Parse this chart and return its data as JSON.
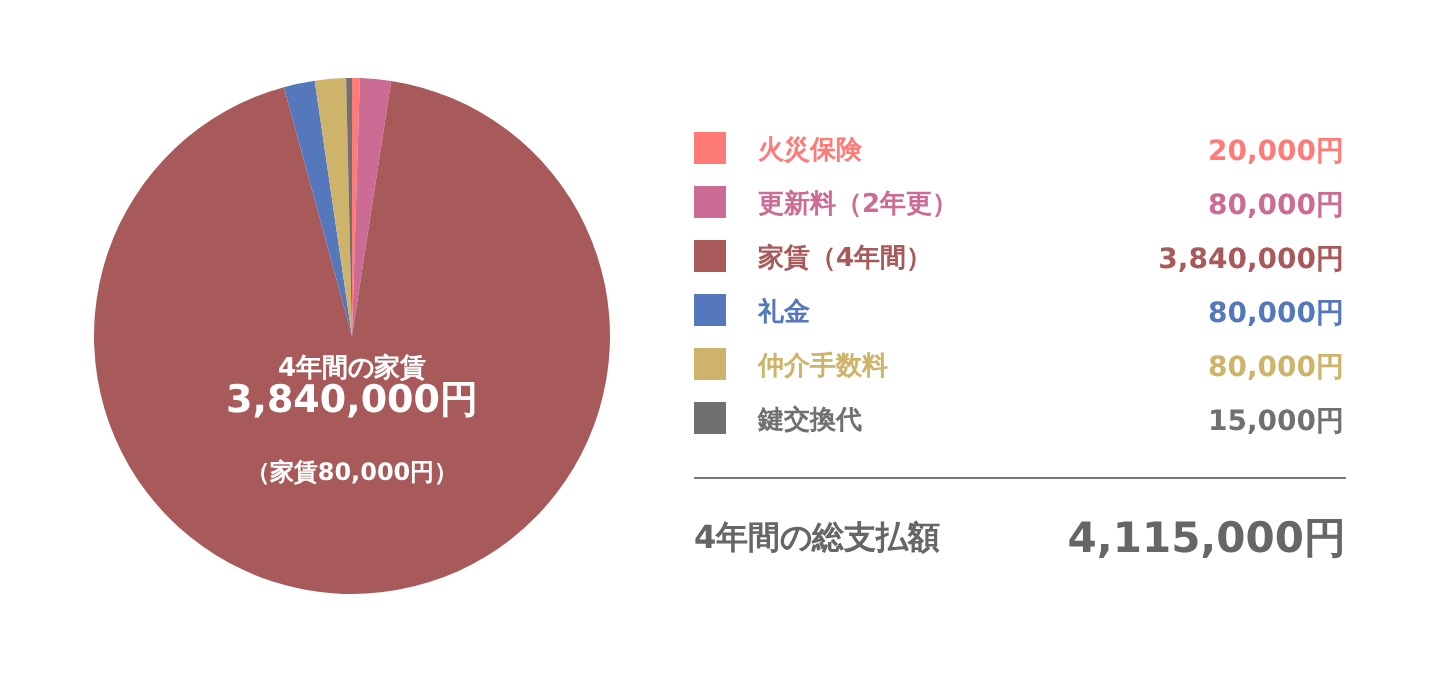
{
  "chart_data": {
    "type": "pie",
    "categories": [
      "火災保険",
      "更新料（2年更）",
      "家賃（4年間）",
      "礼金",
      "仲介手数料",
      "鍵交換代"
    ],
    "values": [
      20000,
      80000,
      3840000,
      80000,
      80000,
      15000
    ],
    "colors": [
      "#ff7b78",
      "#cc6b93",
      "#a85a5a",
      "#5577bb",
      "#cdb46a",
      "#707070"
    ],
    "value_labels": [
      "20,000円",
      "80,000円",
      "3,840,000円",
      "80,000円",
      "80,000円",
      "15,000円"
    ],
    "legend": "right",
    "annotations": [
      "4年間の家賃",
      "3,840,000円",
      "（家賃80,000円）",
      "4年間の総支払額",
      "4,115,000円"
    ]
  }
}
